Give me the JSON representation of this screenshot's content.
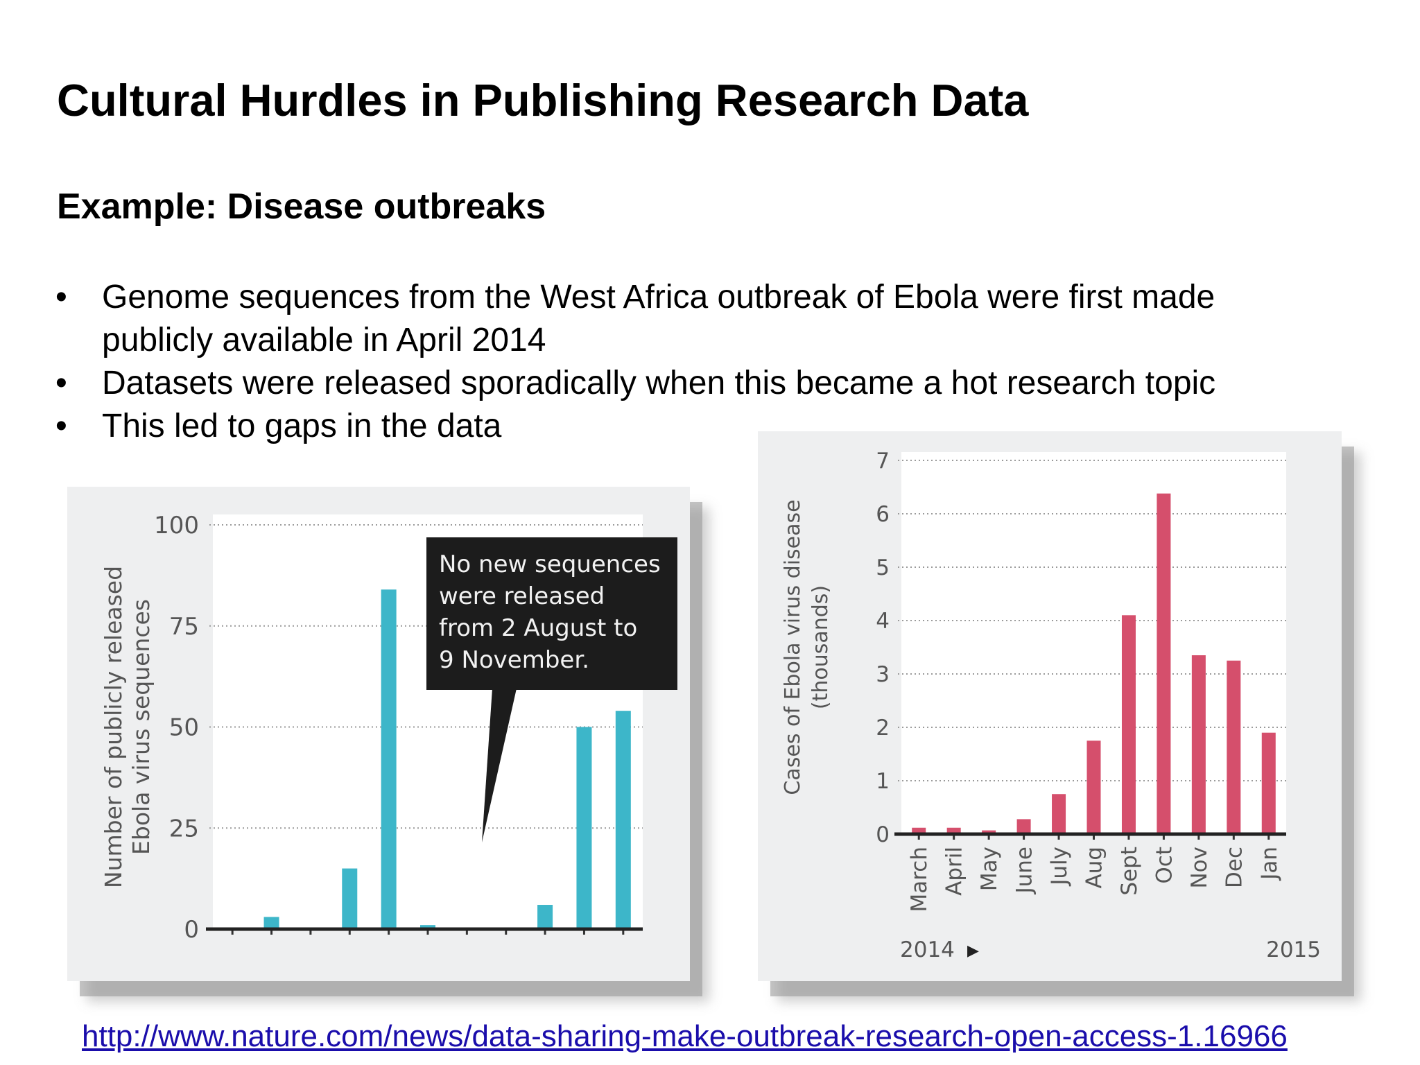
{
  "slide": {
    "title": "Cultural Hurdles in Publishing Research Data",
    "subtitle": "Example: Disease outbreaks",
    "bullets": [
      "Genome sequences from the West Africa outbreak of Ebola were first made publicly available in April 2014",
      "Datasets were released sporadically when this became a hot research topic",
      "This led to gaps in the data"
    ],
    "bullet_marker": "•",
    "source_link": "http://www.nature.com/news/data-sharing-make-outbreak-research-open-access-1.16966"
  },
  "colors": {
    "sequences_bar": "#3db6c9",
    "cases_bar": "#d54f6c",
    "panel_bg": "#eeeff0",
    "plot_bg": "#ffffff",
    "callout_bg": "#1c1c1c",
    "link": "#1a0dab"
  },
  "chart_data": [
    {
      "type": "bar",
      "ylabel": [
        "Number of publicly released",
        "Ebola virus sequences"
      ],
      "yticks": [
        0,
        25,
        50,
        75,
        100
      ],
      "ylim": [
        0,
        100
      ],
      "grid": "horizontal dotted",
      "slot_count": 11,
      "values": [
        0,
        3,
        0,
        15,
        84,
        1,
        0,
        0,
        6,
        50,
        54
      ],
      "annotation": [
        "No new sequences",
        "were released",
        "from 2 August to",
        "9 November."
      ]
    },
    {
      "type": "bar",
      "ylabel": [
        "Cases of Ebola virus disease",
        "(thousands)"
      ],
      "yticks": [
        0,
        1,
        2,
        3,
        4,
        5,
        6,
        7
      ],
      "ylim": [
        0,
        7
      ],
      "grid": "horizontal dotted",
      "categories": [
        "March",
        "April",
        "May",
        "June",
        "July",
        "Aug",
        "Sept",
        "Oct",
        "Nov",
        "Dec",
        "Jan"
      ],
      "values": [
        0.12,
        0.12,
        0.07,
        0.28,
        0.75,
        1.75,
        4.1,
        6.38,
        3.35,
        3.25,
        1.9
      ],
      "year_labels": [
        "2014",
        "2015"
      ],
      "year_marker": "▶"
    }
  ]
}
